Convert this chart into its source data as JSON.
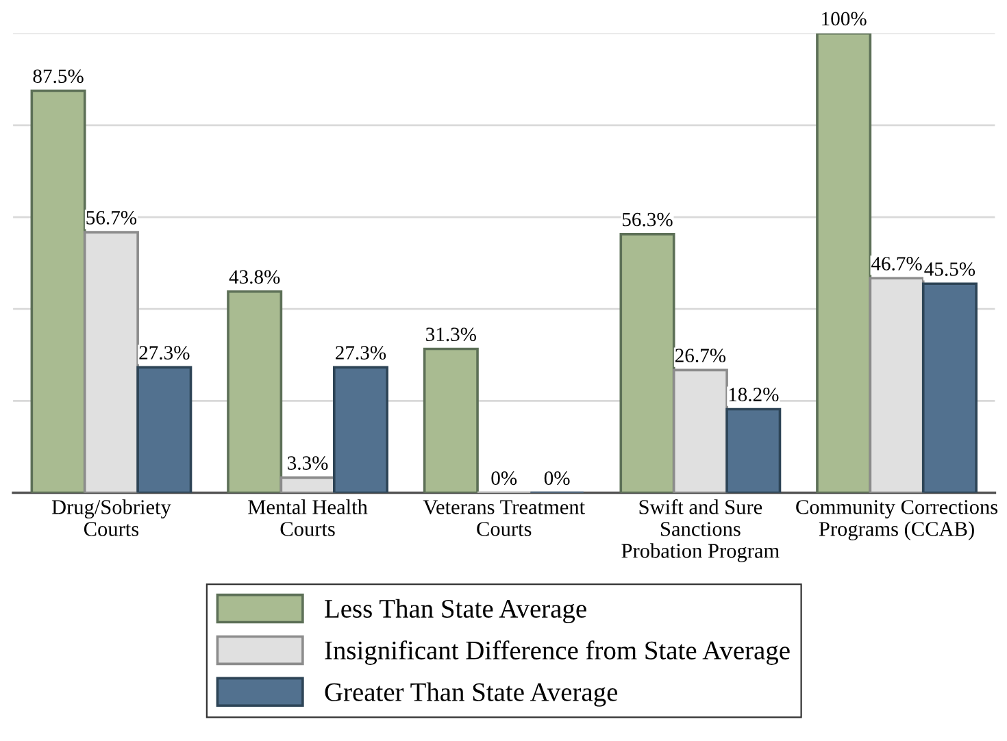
{
  "chart_data": {
    "type": "bar",
    "categories": [
      "Drug/Sobriety\nCourts",
      "Mental Health\nCourts",
      "Veterans Treatment\nCourts",
      "Swift and Sure\nSanctions\nProbation Program",
      "Community Corrections\nPrograms (CCAB)"
    ],
    "series": [
      {
        "name": "Less Than State Average",
        "color": "#a9bb91",
        "values": [
          87.5,
          43.8,
          31.3,
          56.3,
          100
        ],
        "value_labels": [
          "87.5%",
          "43.8%",
          "31.3%",
          "56.3%",
          "100%"
        ]
      },
      {
        "name": "Insignificant Difference from State Average",
        "color": "#e0e0e0",
        "values": [
          56.7,
          3.3,
          0,
          26.7,
          46.7
        ],
        "value_labels": [
          "56.7%",
          "3.3%",
          "0%",
          "26.7%",
          "46.7%"
        ]
      },
      {
        "name": "Greater Than State Average",
        "color": "#52718f",
        "values": [
          27.3,
          27.3,
          0,
          18.2,
          45.5
        ],
        "value_labels": [
          "27.3%",
          "27.3%",
          "0%",
          "18.2%",
          "45.5%"
        ]
      }
    ],
    "ylim": [
      0,
      100
    ],
    "yticks": [
      {
        "value": 0,
        "label": null
      },
      {
        "value": 20,
        "label": null
      },
      {
        "value": 40,
        "label": null
      },
      {
        "value": 60,
        "label": null
      },
      {
        "value": 80,
        "label": null
      },
      {
        "value": 100,
        "label": null
      }
    ],
    "grid": "y",
    "legend": "bottom",
    "tick_labels": "x"
  }
}
